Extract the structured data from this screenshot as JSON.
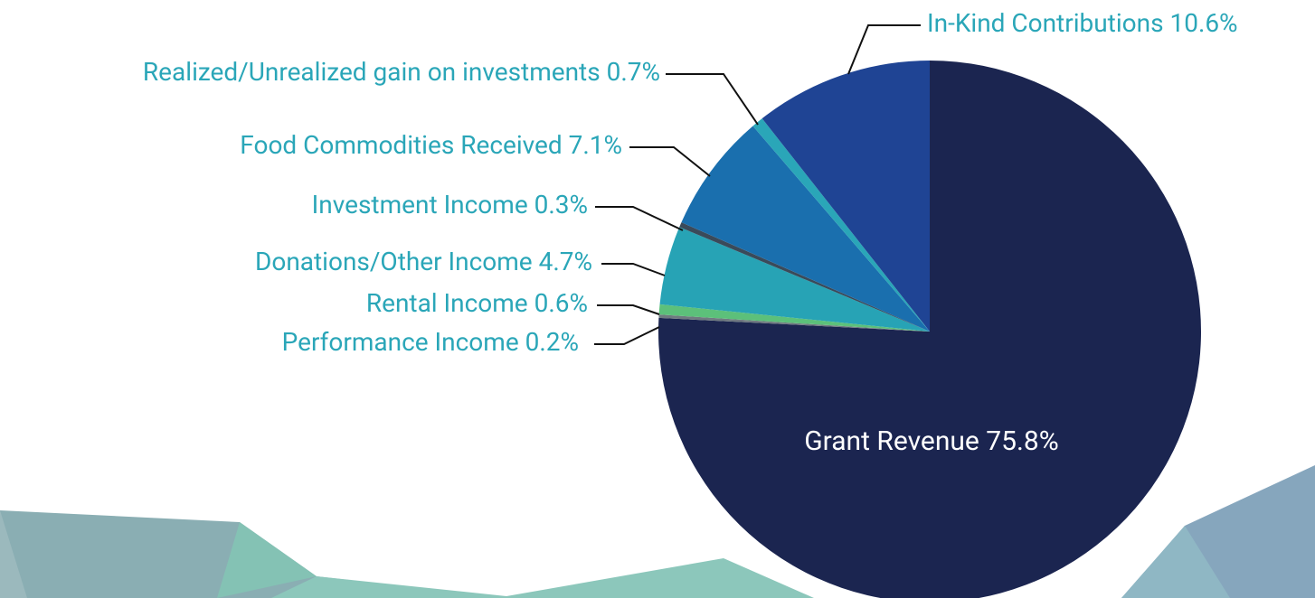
{
  "chart_data": {
    "type": "pie",
    "categories": [
      "Grant Revenue",
      "Performance Income",
      "Rental Income",
      "Donations/Other Income",
      "Investment Income",
      "Food Commodities Received",
      "Realized/Unrealized gain on investments",
      "In-Kind Contributions"
    ],
    "values": [
      75.8,
      0.2,
      0.6,
      4.7,
      0.3,
      7.1,
      0.7,
      10.6
    ],
    "value_labels": [
      "75.8%",
      "0.2%",
      "0.6%",
      "4.7%",
      "0.3%",
      "7.1%",
      "0.7%",
      "10.6%"
    ],
    "colors": [
      "#1b2550",
      "#6f7a80",
      "#5cc07a",
      "#27a3b5",
      "#3a4a5a",
      "#1a6fae",
      "#2aa6b8",
      "#1f4494"
    ]
  }
}
